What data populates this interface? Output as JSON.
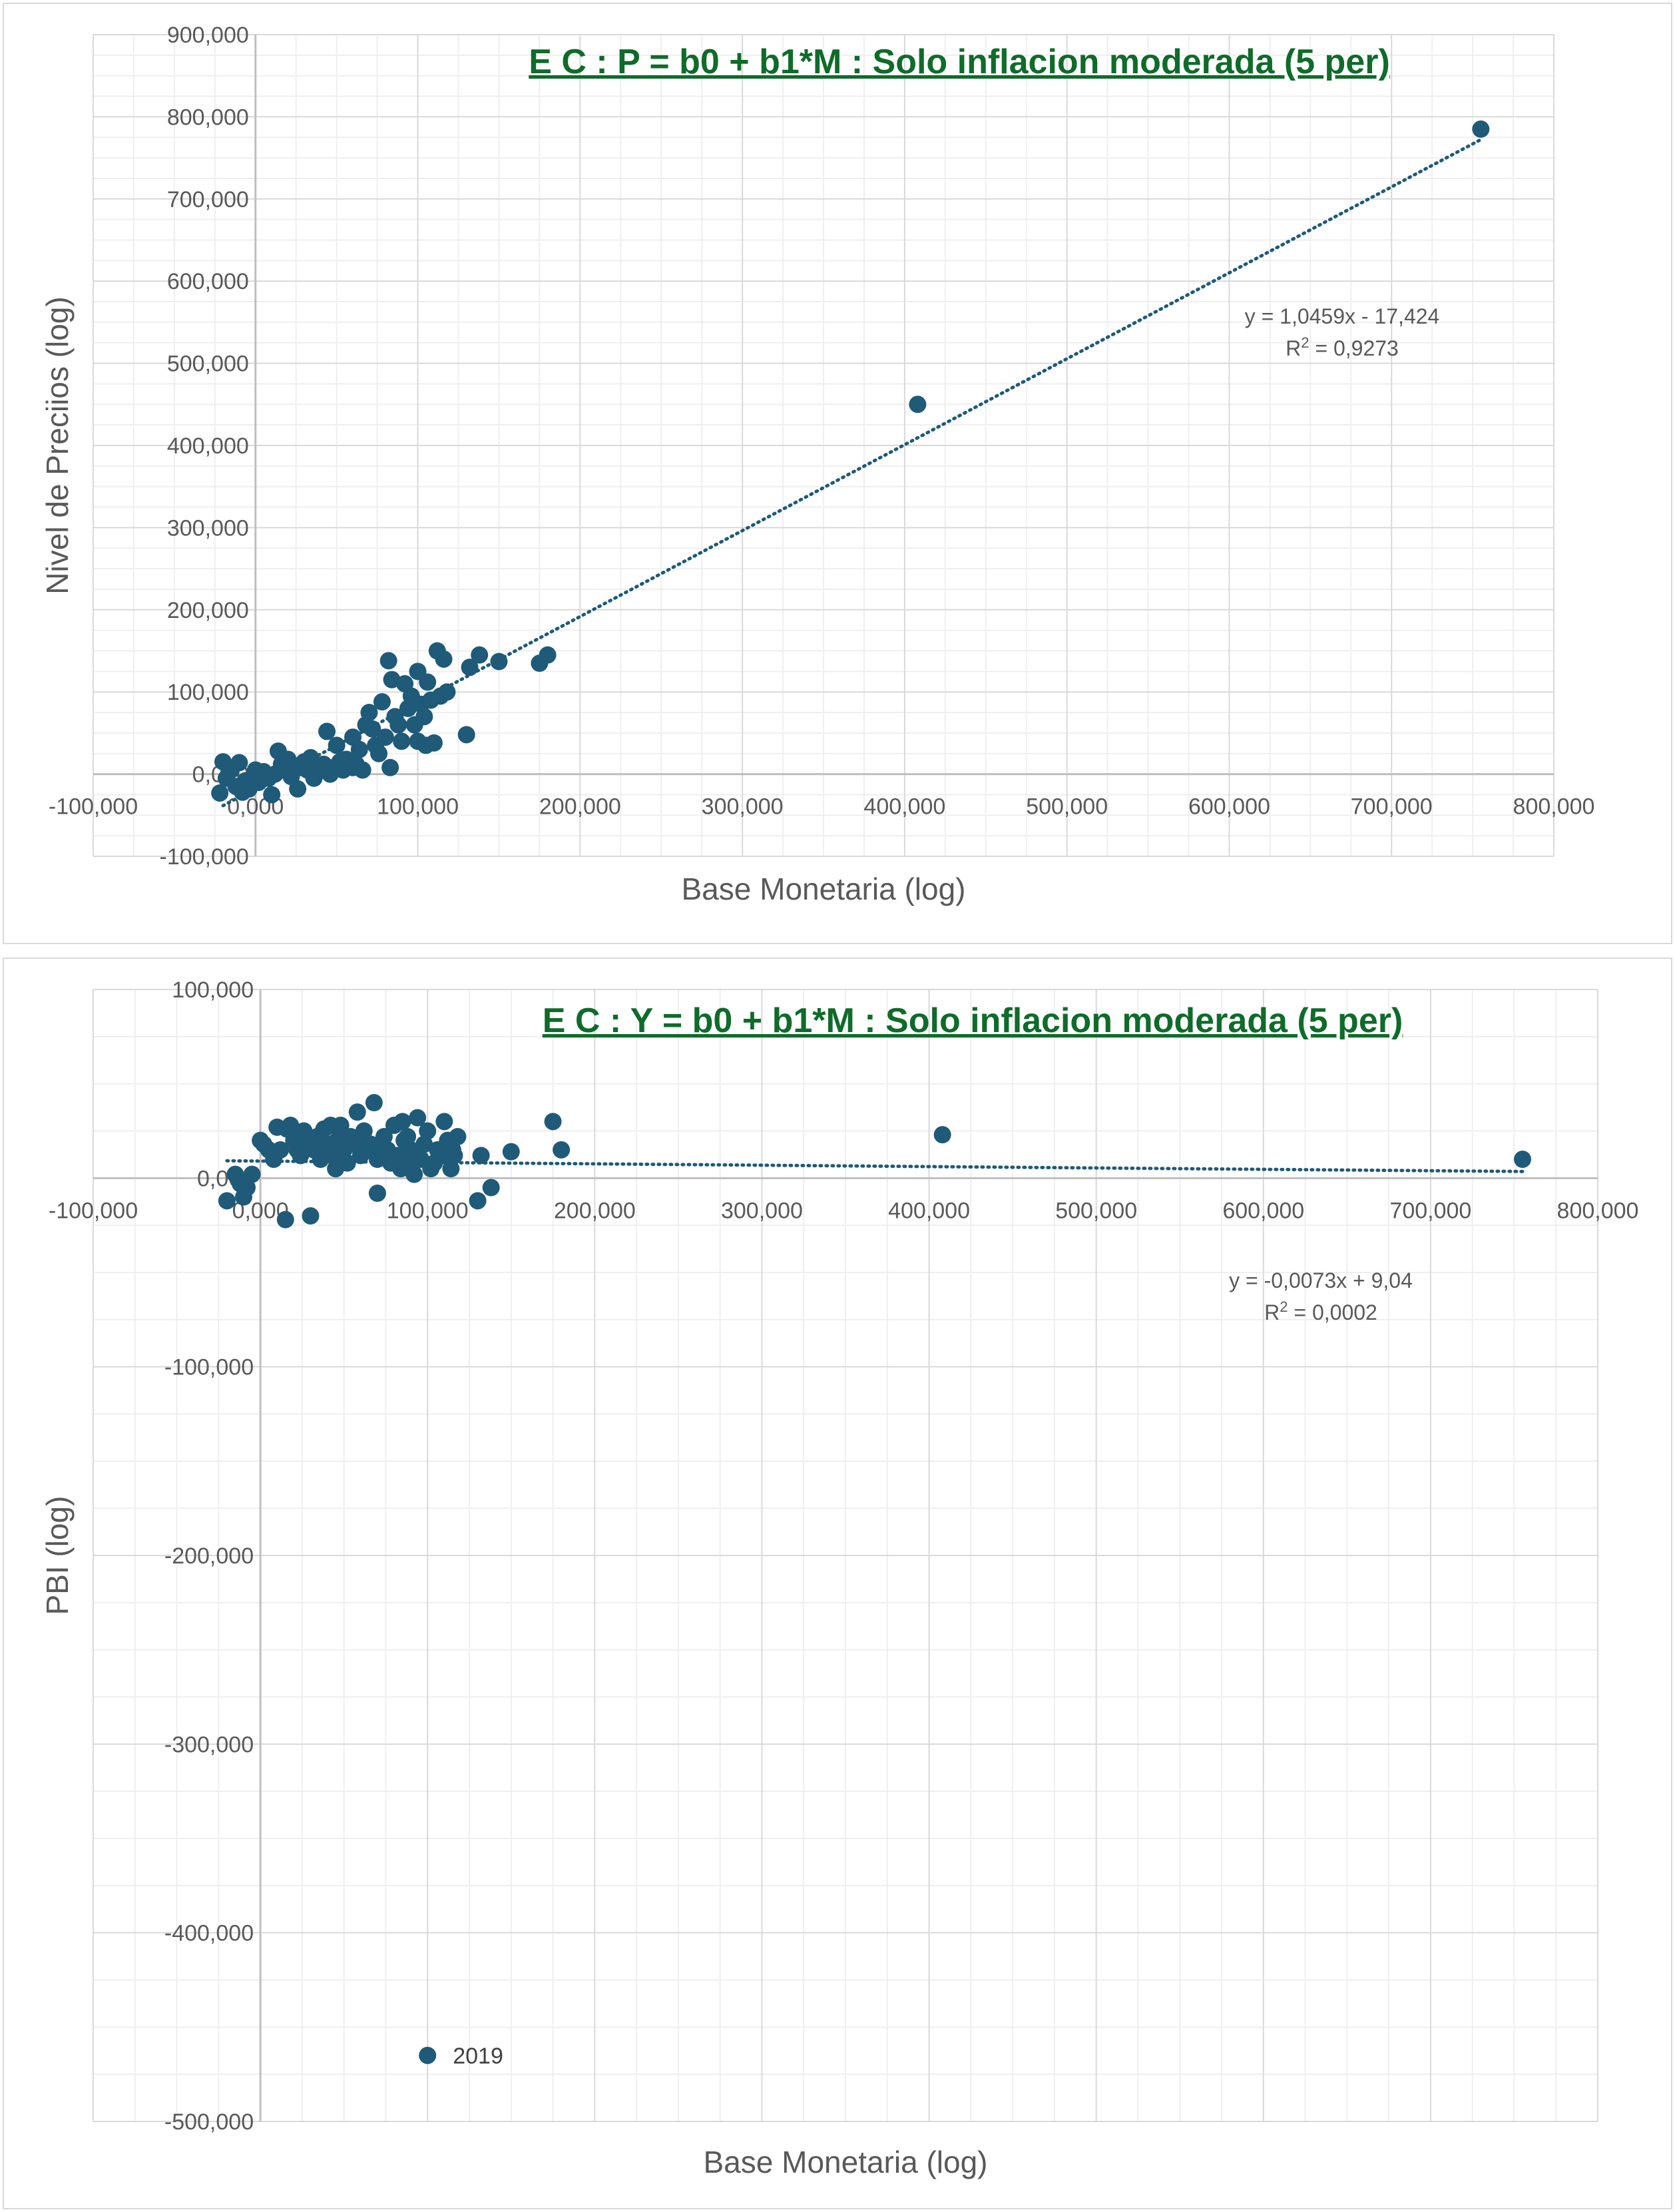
{
  "chart_data": [
    {
      "type": "scatter",
      "title": "E C : P = b0 + b1*M : Solo inflacion moderada (5 per)",
      "xlabel": "Base Monetaria (log)",
      "ylabel": "Nivel de Preciios (log)",
      "xlim": [
        -100000,
        800000
      ],
      "ylim": [
        -100000,
        900000
      ],
      "x_ticks": [
        {
          "value": -100000,
          "label": "-100,000"
        },
        {
          "value": 0,
          "label": "0,000"
        },
        {
          "value": 100000,
          "label": "100,000"
        },
        {
          "value": 200000,
          "label": "200,000"
        },
        {
          "value": 300000,
          "label": "300,000"
        },
        {
          "value": 400000,
          "label": "400,000"
        },
        {
          "value": 500000,
          "label": "500,000"
        },
        {
          "value": 600000,
          "label": "600,000"
        },
        {
          "value": 700000,
          "label": "700,000"
        },
        {
          "value": 800000,
          "label": "800,000"
        }
      ],
      "y_ticks": [
        {
          "value": 900000,
          "label": "900,000"
        },
        {
          "value": 800000,
          "label": "800,000"
        },
        {
          "value": 700000,
          "label": "700,000"
        },
        {
          "value": 600000,
          "label": "600,000"
        },
        {
          "value": 500000,
          "label": "500,000"
        },
        {
          "value": 400000,
          "label": "400,000"
        },
        {
          "value": 300000,
          "label": "300,000"
        },
        {
          "value": 200000,
          "label": "200,000"
        },
        {
          "value": 100000,
          "label": "100,000"
        },
        {
          "value": 0,
          "label": "0,000"
        },
        {
          "value": -100000,
          "label": "-100,000"
        }
      ],
      "grid": true,
      "marker_color": "#1f5a78",
      "trendline": {
        "slope": 1.0459,
        "intercept": -17424,
        "x_range": [
          -20000,
          755000
        ],
        "color": "#1f5a78",
        "style": "dotted",
        "equation": "y = 1,0459x - 17,424",
        "r2_prefix": "R",
        "r2_value": " = 0,9273"
      },
      "points": [
        [
          -22000,
          -23000
        ],
        [
          -20000,
          15000
        ],
        [
          -18000,
          -5000
        ],
        [
          -15000,
          5000
        ],
        [
          -12000,
          -15000
        ],
        [
          -10000,
          14000
        ],
        [
          -8000,
          -22000
        ],
        [
          -6000,
          -8000
        ],
        [
          -4000,
          -18000
        ],
        [
          -2000,
          -12000
        ],
        [
          0,
          5000
        ],
        [
          2000,
          -10000
        ],
        [
          5000,
          3000
        ],
        [
          8000,
          -5000
        ],
        [
          10000,
          -25000
        ],
        [
          12000,
          0
        ],
        [
          14000,
          28000
        ],
        [
          16000,
          12000
        ],
        [
          18000,
          5000
        ],
        [
          20000,
          18000
        ],
        [
          22000,
          -3000
        ],
        [
          24000,
          10000
        ],
        [
          26000,
          -18000
        ],
        [
          28000,
          8000
        ],
        [
          30000,
          15000
        ],
        [
          32000,
          5000
        ],
        [
          34000,
          20000
        ],
        [
          36000,
          -5000
        ],
        [
          40000,
          5000
        ],
        [
          42000,
          12000
        ],
        [
          44000,
          52000
        ],
        [
          46000,
          0
        ],
        [
          48000,
          8000
        ],
        [
          50000,
          35000
        ],
        [
          52000,
          15000
        ],
        [
          54000,
          5000
        ],
        [
          56000,
          18000
        ],
        [
          58000,
          10000
        ],
        [
          60000,
          45000
        ],
        [
          62000,
          12000
        ],
        [
          64000,
          30000
        ],
        [
          66000,
          5000
        ],
        [
          68000,
          60000
        ],
        [
          70000,
          75000
        ],
        [
          72000,
          55000
        ],
        [
          74000,
          35000
        ],
        [
          76000,
          25000
        ],
        [
          78000,
          88000
        ],
        [
          80000,
          45000
        ],
        [
          82000,
          138000
        ],
        [
          83000,
          8000
        ],
        [
          84000,
          115000
        ],
        [
          86000,
          70000
        ],
        [
          88000,
          60000
        ],
        [
          90000,
          40000
        ],
        [
          92000,
          110000
        ],
        [
          94000,
          80000
        ],
        [
          96000,
          95000
        ],
        [
          98000,
          60000
        ],
        [
          100000,
          125000
        ],
        [
          102000,
          85000
        ],
        [
          104000,
          70000
        ],
        [
          106000,
          112000
        ],
        [
          108000,
          90000
        ],
        [
          110000,
          38000
        ],
        [
          112000,
          150000
        ],
        [
          114000,
          95000
        ],
        [
          116000,
          140000
        ],
        [
          118000,
          100000
        ],
        [
          130000,
          48000
        ],
        [
          132000,
          130000
        ],
        [
          138000,
          145000
        ],
        [
          150000,
          137000
        ],
        [
          175000,
          135000
        ],
        [
          180000,
          145000
        ],
        [
          408000,
          450000
        ],
        [
          755000,
          785000
        ],
        [
          60000,
          8000
        ],
        [
          100000,
          40000
        ],
        [
          105000,
          35000
        ]
      ]
    },
    {
      "type": "scatter",
      "title": "E C : Y = b0 + b1*M : Solo inflacion moderada (5 per)",
      "xlabel": "Base Monetaria (log)",
      "ylabel": "PBI  (log)",
      "xlim": [
        -100000,
        800000
      ],
      "ylim": [
        -500000,
        100000
      ],
      "x_ticks": [
        {
          "value": -100000,
          "label": "-100,000"
        },
        {
          "value": 0,
          "label": "0,000"
        },
        {
          "value": 100000,
          "label": "100,000"
        },
        {
          "value": 200000,
          "label": "200,000"
        },
        {
          "value": 300000,
          "label": "300,000"
        },
        {
          "value": 400000,
          "label": "400,000"
        },
        {
          "value": 500000,
          "label": "500,000"
        },
        {
          "value": 600000,
          "label": "600,000"
        },
        {
          "value": 700000,
          "label": "700,000"
        },
        {
          "value": 800000,
          "label": "800,000"
        }
      ],
      "y_ticks": [
        {
          "value": 100000,
          "label": "100,000"
        },
        {
          "value": 0,
          "label": "0,000"
        },
        {
          "value": -100000,
          "label": "-100,000"
        },
        {
          "value": -200000,
          "label": "-200,000"
        },
        {
          "value": -300000,
          "label": "-300,000"
        },
        {
          "value": -400000,
          "label": "-400,000"
        },
        {
          "value": -500000,
          "label": "-500,000"
        }
      ],
      "grid": true,
      "marker_color": "#1f5a78",
      "trendline": {
        "slope": -0.0073,
        "intercept": 9040,
        "x_range": [
          -20000,
          755000
        ],
        "color": "#1f5a78",
        "style": "dotted",
        "equation": "y = -0,0073x + 9,04",
        "r2_prefix": "R",
        "r2_value": " = 0,0002"
      },
      "point_label": {
        "x": 100000,
        "y": -465000,
        "text": "2019"
      },
      "points": [
        [
          -20000,
          -12000
        ],
        [
          -15000,
          2000
        ],
        [
          -12000,
          -3000
        ],
        [
          -10000,
          -10000
        ],
        [
          -8000,
          -5000
        ],
        [
          -5000,
          2000
        ],
        [
          0,
          20000
        ],
        [
          2000,
          18000
        ],
        [
          5000,
          15000
        ],
        [
          8000,
          10000
        ],
        [
          10000,
          27000
        ],
        [
          12000,
          15000
        ],
        [
          15000,
          -22000
        ],
        [
          16000,
          26000
        ],
        [
          18000,
          28000
        ],
        [
          20000,
          20000
        ],
        [
          22000,
          15000
        ],
        [
          24000,
          12000
        ],
        [
          26000,
          25000
        ],
        [
          28000,
          18000
        ],
        [
          30000,
          -20000
        ],
        [
          32000,
          15000
        ],
        [
          34000,
          22000
        ],
        [
          36000,
          10000
        ],
        [
          38000,
          26000
        ],
        [
          40000,
          18000
        ],
        [
          42000,
          28000
        ],
        [
          44000,
          12000
        ],
        [
          46000,
          20000
        ],
        [
          48000,
          28000
        ],
        [
          50000,
          15000
        ],
        [
          52000,
          8000
        ],
        [
          54000,
          22000
        ],
        [
          56000,
          18000
        ],
        [
          58000,
          35000
        ],
        [
          60000,
          12000
        ],
        [
          62000,
          25000
        ],
        [
          64000,
          15000
        ],
        [
          66000,
          18000
        ],
        [
          68000,
          40000
        ],
        [
          70000,
          10000
        ],
        [
          72000,
          18000
        ],
        [
          74000,
          22000
        ],
        [
          76000,
          15000
        ],
        [
          78000,
          8000
        ],
        [
          80000,
          28000
        ],
        [
          82000,
          12000
        ],
        [
          84000,
          5000
        ],
        [
          86000,
          20000
        ],
        [
          88000,
          22000
        ],
        [
          90000,
          15000
        ],
        [
          92000,
          2000
        ],
        [
          94000,
          32000
        ],
        [
          96000,
          10000
        ],
        [
          98000,
          18000
        ],
        [
          100000,
          25000
        ],
        [
          102000,
          5000
        ],
        [
          104000,
          8000
        ],
        [
          106000,
          15000
        ],
        [
          108000,
          12000
        ],
        [
          110000,
          30000
        ],
        [
          112000,
          20000
        ],
        [
          114000,
          5000
        ],
        [
          116000,
          12000
        ],
        [
          118000,
          22000
        ],
        [
          130000,
          -12000
        ],
        [
          132000,
          12000
        ],
        [
          138000,
          -5000
        ],
        [
          150000,
          14000
        ],
        [
          175000,
          30000
        ],
        [
          180000,
          15000
        ],
        [
          408000,
          23000
        ],
        [
          755000,
          10000
        ],
        [
          70000,
          -8000
        ],
        [
          100000,
          -465000
        ],
        [
          90000,
          8000
        ],
        [
          60000,
          20000
        ],
        [
          45000,
          5000
        ],
        [
          115000,
          15000
        ],
        [
          85000,
          30000
        ]
      ]
    }
  ]
}
